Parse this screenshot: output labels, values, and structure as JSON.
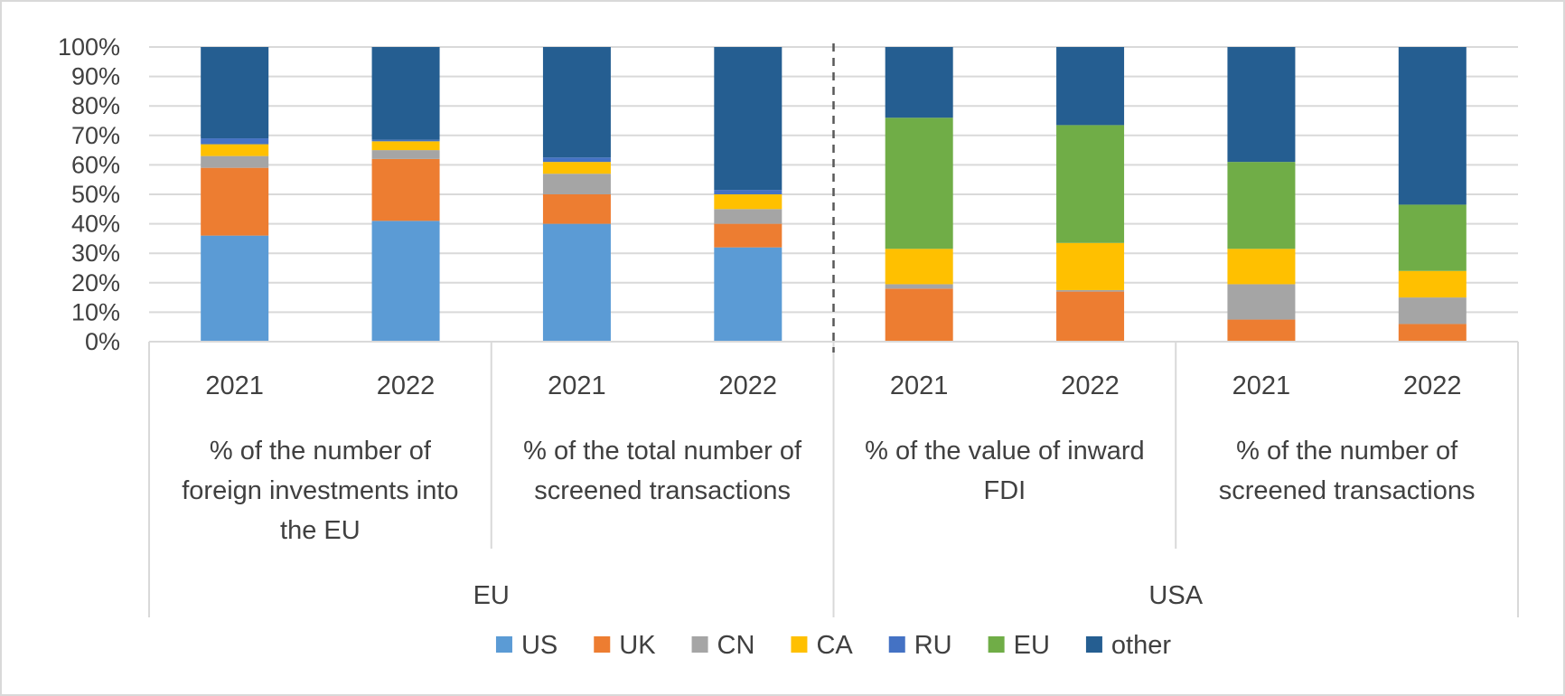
{
  "chart_data": {
    "type": "bar",
    "stacked": true,
    "title": "",
    "xlabel": "",
    "ylabel": "",
    "ylim": [
      0,
      100
    ],
    "yticks": [
      "0%",
      "10%",
      "20%",
      "30%",
      "40%",
      "50%",
      "60%",
      "70%",
      "80%",
      "90%",
      "100%"
    ],
    "grid": true,
    "legend_position": "bottom",
    "top_groups": [
      {
        "label": "EU",
        "span": [
          0,
          3
        ]
      },
      {
        "label": "USA",
        "span": [
          4,
          7
        ]
      }
    ],
    "sub_groups": [
      {
        "label_lines": [
          "% of the number of",
          "foreign investments into",
          "the EU"
        ],
        "span": [
          0,
          1
        ]
      },
      {
        "label_lines": [
          "% of the total number of",
          "screened transactions"
        ],
        "span": [
          2,
          3
        ]
      },
      {
        "label_lines": [
          "% of the value of inward",
          "FDI"
        ],
        "span": [
          4,
          5
        ]
      },
      {
        "label_lines": [
          "% of the number of",
          "screened transactions"
        ],
        "span": [
          6,
          7
        ]
      }
    ],
    "categories": [
      "2021",
      "2022",
      "2021",
      "2022",
      "2021",
      "2022",
      "2021",
      "2022"
    ],
    "series": [
      {
        "name": "US",
        "color": "#5B9BD5",
        "values": [
          36,
          41,
          40,
          32,
          0,
          0,
          0,
          0
        ]
      },
      {
        "name": "UK",
        "color": "#ED7D31",
        "values": [
          23,
          21,
          10,
          8,
          18,
          17,
          7.5,
          6
        ]
      },
      {
        "name": "CN",
        "color": "#A5A5A5",
        "values": [
          4,
          3,
          7,
          5,
          1.5,
          0.5,
          12,
          9
        ]
      },
      {
        "name": "CA",
        "color": "#FFC000",
        "values": [
          4,
          3,
          4,
          5,
          12,
          16,
          12,
          9
        ]
      },
      {
        "name": "RU",
        "color": "#4472C4",
        "values": [
          2,
          0.5,
          1.5,
          1.5,
          0,
          0,
          0,
          0
        ]
      },
      {
        "name": "EU",
        "color": "#70AD47",
        "values": [
          0,
          0,
          0,
          0,
          44.5,
          40,
          29.5,
          22.5
        ]
      },
      {
        "name": "other",
        "color": "#255E91",
        "values": [
          31,
          31.5,
          37.5,
          48.5,
          24,
          26.5,
          39,
          53.5
        ]
      }
    ]
  }
}
